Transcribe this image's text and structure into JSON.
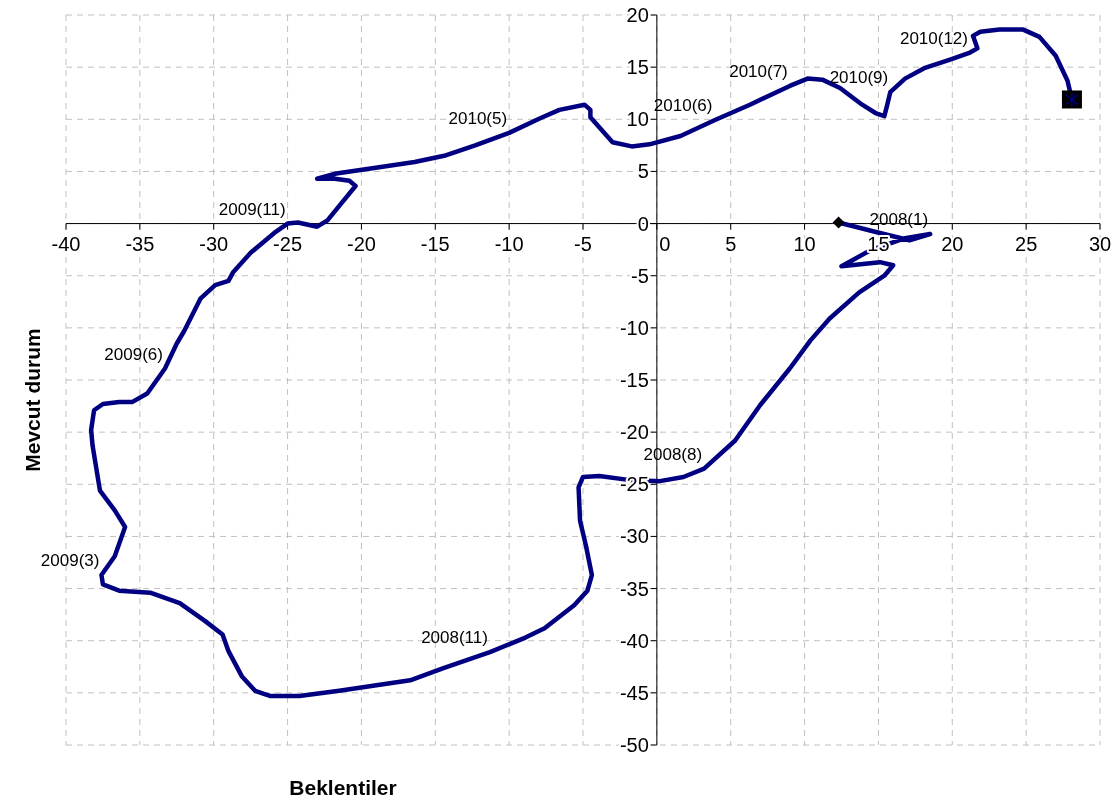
{
  "chart_data": {
    "type": "line",
    "xlabel": "Beklentiler",
    "ylabel": "Mevcut durum",
    "xlim": [
      -40,
      30
    ],
    "xticks": [
      -40,
      -35,
      -30,
      -25,
      -20,
      -15,
      -10,
      -5,
      0,
      5,
      10,
      15,
      20,
      25,
      30
    ],
    "ylim": [
      -50,
      20
    ],
    "yticks": [
      -50,
      -45,
      -40,
      -35,
      -30,
      -25,
      -20,
      -15,
      -10,
      -5,
      0,
      5,
      10,
      15,
      20
    ],
    "grid": true,
    "marker": "none",
    "line_style": "solid",
    "series": [
      {
        "color": "#000080",
        "x": [
          12.3,
          15.1,
          17.1,
          18.5,
          16.8,
          14.4,
          12.5,
          15.1,
          16.0,
          15.4,
          13.7,
          11.7,
          10.4,
          9.0,
          7.0,
          5.3,
          3.2,
          1.8,
          0.2,
          -1.8,
          -3.9,
          -5.0,
          -5.3,
          -5.2,
          -4.8,
          -4.4,
          -4.7,
          -5.6,
          -7.6,
          -8.9,
          -11.3,
          -14.4,
          -16.7,
          -19.1,
          -21.5,
          -24.2,
          -26.2,
          -27.2,
          -28.1,
          -29.0,
          -29.4,
          -30.6,
          -32.3,
          -34.3,
          -36.4,
          -37.5,
          -37.6,
          -36.7,
          -36.0,
          -36.7,
          -37.7,
          -38.2,
          -38.3,
          -38.1,
          -37.5,
          -36.4,
          -35.5,
          -34.5,
          -33.3,
          -32.5,
          -32.0,
          -30.9,
          -29.9,
          -29.0,
          -28.7,
          -27.5,
          -25.9,
          -25.0,
          -24.3,
          -23.0,
          -22.3,
          -21.5,
          -20.4,
          -20.8,
          -21.8,
          -23.0,
          -21.7,
          -18.8,
          -16.4,
          -14.4,
          -12.3,
          -10.0,
          -7.9,
          -6.6,
          -4.9,
          -4.5,
          -4.5,
          -3.0,
          -1.7,
          -0.5,
          1.6,
          3.9,
          6.3,
          9.0,
          10.2,
          11.2,
          12.4,
          13.9,
          14.8,
          15.4,
          15.6,
          15.8,
          16.8,
          18.1,
          19.8,
          21.2,
          21.7,
          21.4,
          21.9,
          23.2,
          24.8,
          25.9,
          27.0,
          27.8,
          28.1
        ],
        "values": [
          0.1,
          -0.9,
          -1.6,
          -1.0,
          -1.4,
          -2.6,
          -4.1,
          -3.7,
          -4.0,
          -5.0,
          -6.6,
          -9.1,
          -11.2,
          -13.9,
          -17.4,
          -20.8,
          -23.5,
          -24.3,
          -24.7,
          -24.6,
          -24.2,
          -24.3,
          -25.3,
          -28.5,
          -30.9,
          -33.7,
          -35.2,
          -36.6,
          -38.8,
          -39.7,
          -41.1,
          -42.6,
          -43.8,
          -44.3,
          -44.8,
          -45.3,
          -45.3,
          -44.8,
          -43.4,
          -41.0,
          -39.4,
          -38.1,
          -36.4,
          -35.4,
          -35.2,
          -34.6,
          -33.7,
          -31.9,
          -29.1,
          -27.5,
          -25.6,
          -21.3,
          -19.8,
          -17.9,
          -17.3,
          -17.1,
          -17.1,
          -16.3,
          -13.9,
          -11.5,
          -10.3,
          -7.2,
          -5.9,
          -5.5,
          -4.7,
          -2.8,
          -0.9,
          0.0,
          0.1,
          -0.3,
          0.3,
          1.7,
          3.6,
          4.1,
          4.3,
          4.3,
          4.8,
          5.4,
          5.9,
          6.5,
          7.5,
          8.7,
          10.1,
          10.9,
          11.4,
          10.9,
          10.2,
          7.8,
          7.4,
          7.6,
          8.4,
          9.9,
          11.4,
          13.2,
          13.9,
          13.8,
          13.0,
          11.4,
          10.6,
          10.3,
          11.4,
          12.6,
          13.9,
          14.9,
          15.7,
          16.4,
          16.8,
          18.0,
          18.4,
          18.6,
          18.6,
          17.9,
          16.1,
          13.7,
          11.9
        ]
      },
      {
        "type": "scatter",
        "marker": "diamond",
        "color": "#000000",
        "x": [
          12.3
        ],
        "values": [
          0.1
        ]
      },
      {
        "type": "scatter",
        "marker": "square",
        "color": "#000000",
        "x": [
          28.1
        ],
        "values": [
          11.9
        ]
      }
    ],
    "annotations": [
      {
        "text": "2008(1)",
        "x": 18.5,
        "y": -1.0
      },
      {
        "text": "2008(8)",
        "x": 3.2,
        "y": -23.5
      },
      {
        "text": "2008(11)",
        "x": -11.3,
        "y": -41.1
      },
      {
        "text": "2009(3)",
        "x": -37.6,
        "y": -33.7
      },
      {
        "text": "2009(6)",
        "x": -33.3,
        "y": -13.9
      },
      {
        "text": "2009(11)",
        "x": -25.0,
        "y": 0.0
      },
      {
        "text": "2010(5)",
        "x": -10.0,
        "y": 8.7
      },
      {
        "text": "2010(6)",
        "x": 3.9,
        "y": 9.9
      },
      {
        "text": "2010(7)",
        "x": 9.0,
        "y": 13.2
      },
      {
        "text": "2010(9)",
        "x": 15.8,
        "y": 12.6
      },
      {
        "text": "2010(12)",
        "x": 21.2,
        "y": 16.4
      }
    ]
  }
}
